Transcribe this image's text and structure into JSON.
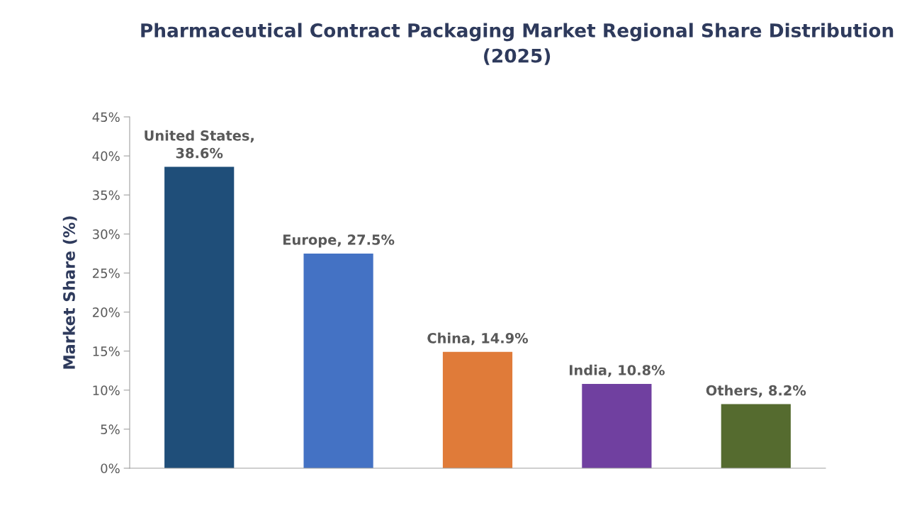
{
  "chart_data": {
    "type": "bar",
    "title": "Pharmaceutical Contract Packaging Market Regional Share Distribution\n(2025)",
    "ylabel": "Market Share (%)",
    "categories": [
      null,
      null,
      null,
      null,
      null
    ],
    "values": [
      38.6,
      27.5,
      14.9,
      10.8,
      8.2
    ],
    "colors": [
      "#1f4e79",
      "#4472c4",
      "#e07b39",
      "#7040a0",
      "#556b2f"
    ],
    "value_labels": [
      "United States,\n38.6%",
      "Europe, 27.5%",
      "China, 14.9%",
      "India, 10.8%",
      "Others, 8.2%"
    ],
    "ylim": [
      0,
      45
    ],
    "yticks": [
      {
        "value": 0,
        "label": "0%"
      },
      {
        "value": 5,
        "label": "5%"
      },
      {
        "value": 10,
        "label": "10%"
      },
      {
        "value": 15,
        "label": "15%"
      },
      {
        "value": 20,
        "label": "20%"
      },
      {
        "value": 25,
        "label": "25%"
      },
      {
        "value": 30,
        "label": "30%"
      },
      {
        "value": 35,
        "label": "35%"
      },
      {
        "value": 40,
        "label": "40%"
      },
      {
        "value": 45,
        "label": "45%"
      }
    ],
    "grid": false,
    "legend": false
  }
}
